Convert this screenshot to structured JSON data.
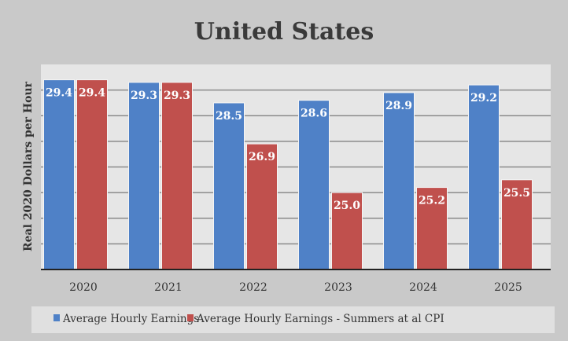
{
  "chart_data": {
    "type": "bar",
    "title": "United States",
    "xlabel": "",
    "ylabel": "Real 2020 Dollars per Hour",
    "categories": [
      "2020",
      "2021",
      "2022",
      "2023",
      "2024",
      "2025"
    ],
    "series": [
      {
        "name": "Average Hourly Earnings",
        "color": "#4f81c7",
        "values": [
          29.4,
          29.3,
          28.5,
          28.6,
          28.9,
          29.2
        ]
      },
      {
        "name": "Average Hourly Earnings - Summers at al CPI",
        "color": "#c0504d",
        "values": [
          29.4,
          29.3,
          26.9,
          25.0,
          25.2,
          25.5
        ]
      }
    ],
    "ylim": [
      22,
      30
    ],
    "y_tick_labels_shown": false,
    "grid": true,
    "legend": "bottom",
    "data_labels": true
  }
}
